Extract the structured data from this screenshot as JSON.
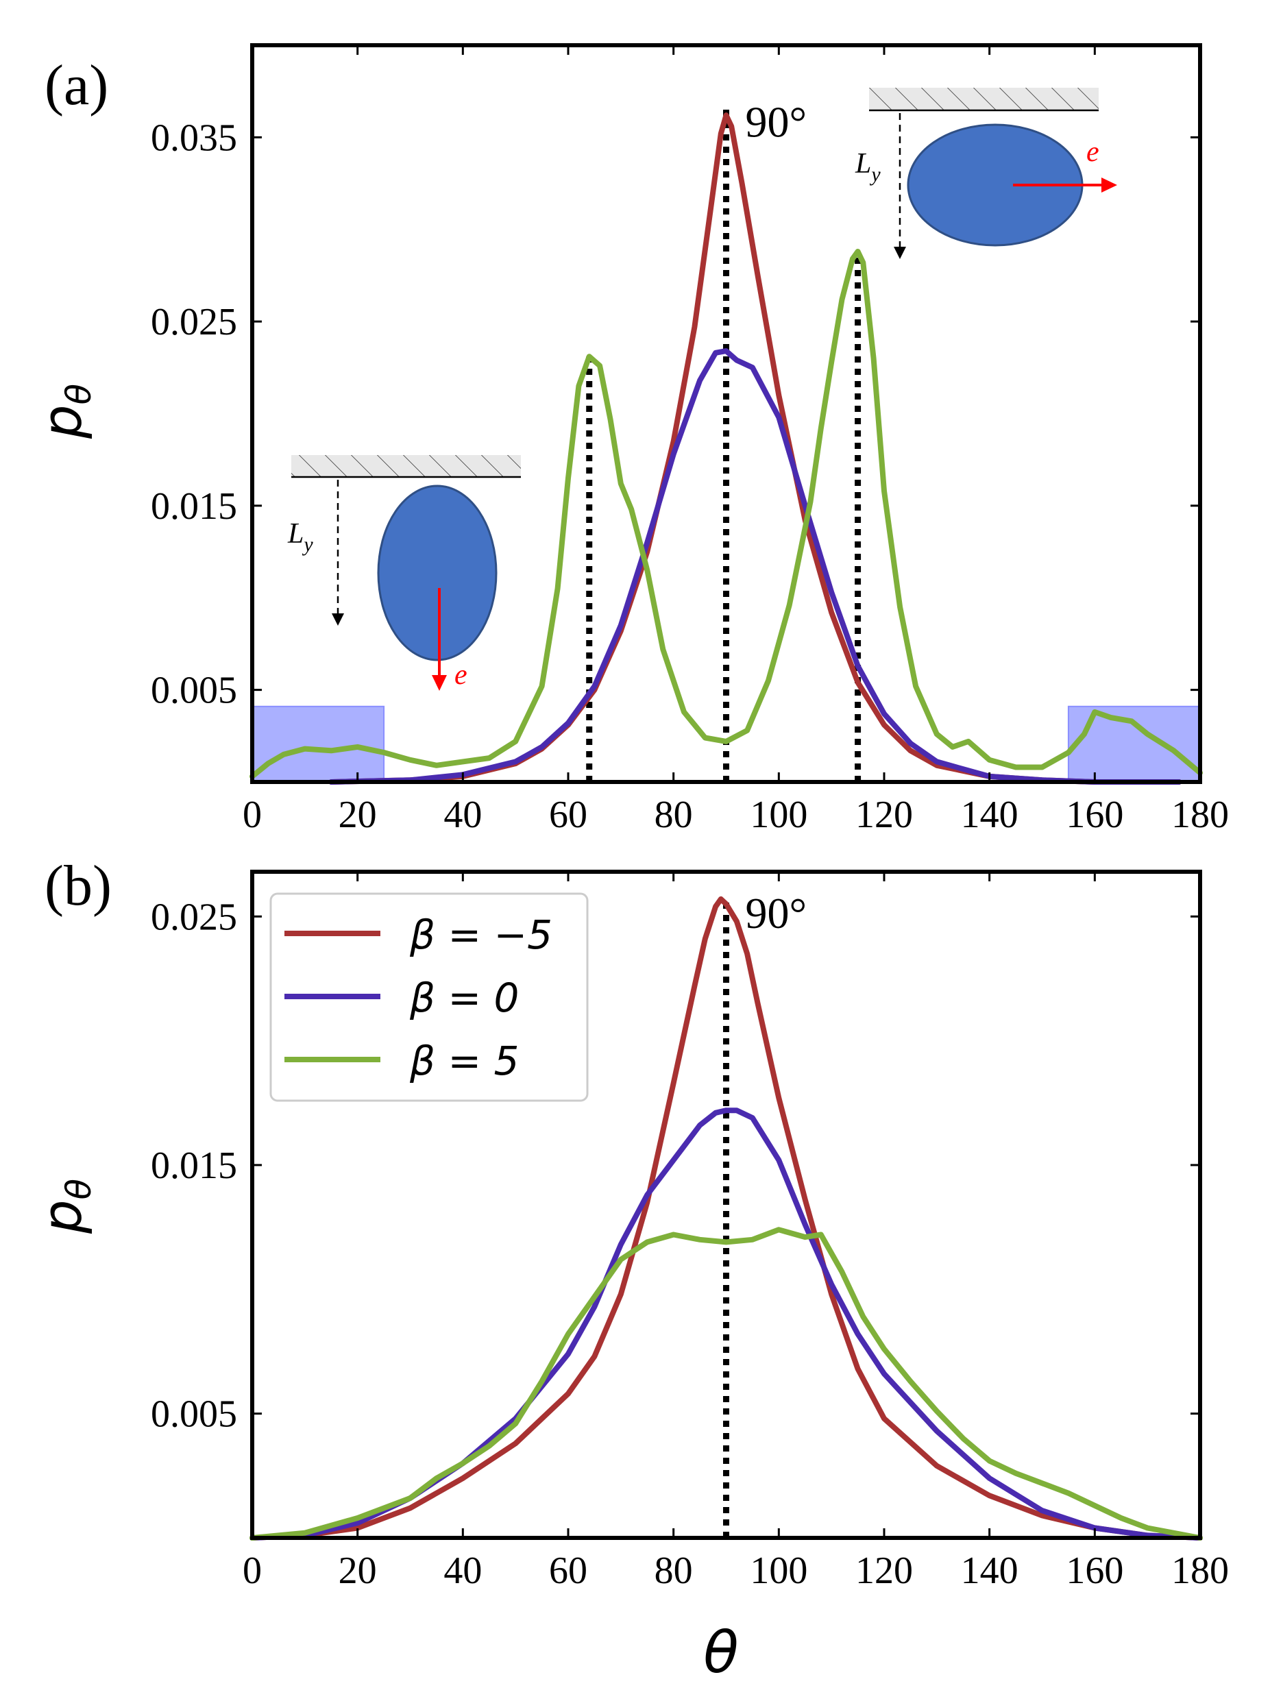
{
  "chart_data": [
    {
      "panel_label": "(a)",
      "type": "line",
      "xlabel": "",
      "ylabel_symbol": "p",
      "ylabel_subscript": "θ",
      "xlim": [
        0,
        180
      ],
      "ylim": [
        0,
        0.04
      ],
      "xticks": [
        0,
        20,
        40,
        60,
        80,
        100,
        120,
        140,
        160,
        180
      ],
      "yticks": [
        0.005,
        0.015,
        0.025,
        0.035
      ],
      "ytick_labels": [
        "0.005",
        "0.015",
        "0.025",
        "0.035"
      ],
      "annotation": "90°",
      "annotation_x": 90,
      "shaded_ranges": [
        [
          0,
          25
        ],
        [
          155,
          180
        ]
      ],
      "shaded_height": 0.0041,
      "vlines": [
        {
          "x": 64,
          "ymax": 0.0231
        },
        {
          "x": 90,
          "ymax": 0.0366
        },
        {
          "x": 115,
          "ymax": 0.0288
        }
      ],
      "insets": [
        {
          "name": "inset-vertical-ellipse",
          "ly_label": "L",
          "ly_subscript": "y",
          "e_label": "e"
        },
        {
          "name": "inset-horizontal-ellipse",
          "ly_label": "L",
          "ly_subscript": "y",
          "e_label": "e"
        }
      ],
      "series": [
        {
          "name": "β = −5",
          "color": "#a83232",
          "x": [
            15,
            30,
            40,
            50,
            55,
            60,
            65,
            70,
            75,
            80,
            84,
            87,
            89,
            90,
            91,
            93,
            96,
            100,
            105,
            110,
            115,
            120,
            125,
            130,
            140,
            150,
            160,
            170,
            176
          ],
          "y": [
            0,
            0.0001,
            0.0003,
            0.001,
            0.0018,
            0.0031,
            0.005,
            0.0082,
            0.0125,
            0.0185,
            0.0247,
            0.031,
            0.0352,
            0.0362,
            0.0356,
            0.0325,
            0.0275,
            0.021,
            0.0142,
            0.0092,
            0.0054,
            0.0031,
            0.0017,
            0.0009,
            0.0003,
            0.0001,
            0,
            0,
            0
          ]
        },
        {
          "name": "β = 0",
          "color": "#4a2bb0",
          "x": [
            15,
            30,
            40,
            50,
            55,
            60,
            65,
            70,
            75,
            80,
            85,
            88,
            90,
            92,
            95,
            100,
            105,
            110,
            115,
            120,
            125,
            130,
            140,
            150,
            160,
            170,
            176
          ],
          "y": [
            0,
            0.0001,
            0.0004,
            0.0011,
            0.0019,
            0.0032,
            0.0052,
            0.0085,
            0.013,
            0.0178,
            0.0218,
            0.0233,
            0.0234,
            0.0229,
            0.0225,
            0.0198,
            0.015,
            0.0103,
            0.0063,
            0.0037,
            0.0021,
            0.0011,
            0.0003,
            0.0001,
            0,
            0,
            0
          ]
        },
        {
          "name": "β = 5",
          "color": "#7fb03a",
          "x": [
            0,
            3,
            6,
            10,
            15,
            20,
            25,
            30,
            35,
            40,
            45,
            50,
            55,
            58,
            60,
            62,
            64,
            66,
            68,
            70,
            72,
            75,
            78,
            82,
            86,
            90,
            94,
            98,
            102,
            106,
            108,
            110,
            112,
            114,
            115,
            116,
            118,
            120,
            123,
            126,
            130,
            133,
            136,
            140,
            145,
            150,
            155,
            158,
            160,
            163,
            167,
            170,
            175,
            180
          ],
          "y": [
            0.0003,
            0.001,
            0.0015,
            0.0018,
            0.0017,
            0.0019,
            0.0016,
            0.0012,
            0.0009,
            0.0011,
            0.0013,
            0.0022,
            0.0052,
            0.0105,
            0.0165,
            0.0215,
            0.0231,
            0.0226,
            0.0197,
            0.0162,
            0.0148,
            0.0115,
            0.0072,
            0.0038,
            0.0024,
            0.0022,
            0.0028,
            0.0055,
            0.0096,
            0.0152,
            0.0192,
            0.0228,
            0.0262,
            0.0284,
            0.0288,
            0.0282,
            0.023,
            0.0158,
            0.0095,
            0.0052,
            0.0026,
            0.0019,
            0.0022,
            0.0012,
            0.0008,
            0.0008,
            0.0016,
            0.0026,
            0.0038,
            0.0035,
            0.0033,
            0.0026,
            0.0017,
            0.0005
          ]
        }
      ]
    },
    {
      "panel_label": "(b)",
      "type": "line",
      "xlabel": "θ",
      "ylabel_symbol": "p",
      "ylabel_subscript": "θ",
      "xlim": [
        0,
        180
      ],
      "ylim": [
        0,
        0.0268
      ],
      "xticks": [
        0,
        20,
        40,
        60,
        80,
        100,
        120,
        140,
        160,
        180
      ],
      "yticks": [
        0.005,
        0.015,
        0.025
      ],
      "ytick_labels": [
        "0.005",
        "0.015",
        "0.025"
      ],
      "annotation": "90°",
      "annotation_x": 90,
      "vlines": [
        {
          "x": 90,
          "ymax": 0.0257
        }
      ],
      "legend": {
        "placement": "top-left",
        "entries": [
          {
            "label": "β = −5",
            "color": "#a83232"
          },
          {
            "label": "β = 0",
            "color": "#4a2bb0"
          },
          {
            "label": "β = 5",
            "color": "#7fb03a"
          }
        ]
      },
      "series": [
        {
          "name": "β = −5",
          "color": "#a83232",
          "x": [
            0,
            10,
            20,
            30,
            40,
            50,
            60,
            65,
            70,
            75,
            80,
            84,
            86,
            88,
            89,
            90,
            92,
            94,
            96,
            100,
            105,
            110,
            115,
            120,
            130,
            140,
            150,
            160,
            170,
            180
          ],
          "y": [
            0,
            0.0001,
            0.0004,
            0.0012,
            0.0024,
            0.0038,
            0.0058,
            0.0073,
            0.0098,
            0.0135,
            0.0183,
            0.0222,
            0.0241,
            0.0254,
            0.0257,
            0.0255,
            0.0248,
            0.0235,
            0.0215,
            0.0177,
            0.0136,
            0.0098,
            0.0068,
            0.0048,
            0.0029,
            0.0017,
            0.0009,
            0.0004,
            0.0001,
            0
          ]
        },
        {
          "name": "β = 0",
          "color": "#4a2bb0",
          "x": [
            0,
            10,
            20,
            30,
            40,
            50,
            60,
            65,
            70,
            75,
            80,
            85,
            88,
            90,
            92,
            95,
            100,
            105,
            110,
            115,
            120,
            130,
            140,
            150,
            160,
            170,
            180
          ],
          "y": [
            0,
            0.0001,
            0.0006,
            0.0016,
            0.003,
            0.0048,
            0.0074,
            0.0093,
            0.0118,
            0.0138,
            0.0152,
            0.0166,
            0.0171,
            0.0172,
            0.0172,
            0.0169,
            0.0152,
            0.0126,
            0.0102,
            0.0082,
            0.0066,
            0.0043,
            0.0024,
            0.0011,
            0.0004,
            0.0001,
            0
          ]
        },
        {
          "name": "β = 5",
          "color": "#7fb03a",
          "x": [
            0,
            10,
            20,
            30,
            35,
            40,
            45,
            50,
            55,
            60,
            65,
            70,
            75,
            80,
            85,
            90,
            95,
            100,
            105,
            108,
            112,
            116,
            120,
            125,
            130,
            135,
            140,
            145,
            150,
            155,
            160,
            165,
            170,
            180
          ],
          "y": [
            0,
            0.0002,
            0.0008,
            0.0016,
            0.0024,
            0.003,
            0.0037,
            0.0046,
            0.0063,
            0.0082,
            0.0097,
            0.0112,
            0.0119,
            0.0122,
            0.012,
            0.0119,
            0.012,
            0.0124,
            0.0121,
            0.0122,
            0.0107,
            0.0089,
            0.0076,
            0.0063,
            0.0051,
            0.004,
            0.0031,
            0.0026,
            0.0022,
            0.0018,
            0.0013,
            0.0008,
            0.0004,
            0
          ]
        }
      ]
    }
  ]
}
